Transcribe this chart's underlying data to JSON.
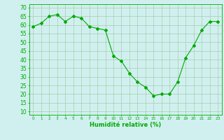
{
  "x": [
    0,
    1,
    2,
    3,
    4,
    5,
    6,
    7,
    8,
    9,
    10,
    11,
    12,
    13,
    14,
    15,
    16,
    17,
    18,
    19,
    20,
    21,
    22,
    23
  ],
  "y": [
    59,
    61,
    65,
    66,
    62,
    65,
    64,
    59,
    58,
    57,
    42,
    39,
    32,
    27,
    24,
    19,
    20,
    20,
    27,
    41,
    48,
    57,
    62,
    62
  ],
  "line_color": "#00aa00",
  "marker": "D",
  "marker_size": 2.0,
  "bg_color": "#d0f0f0",
  "grid_color": "#aaccaa",
  "axis_color": "#00aa00",
  "tick_color": "#00aa00",
  "xlabel": "Humidité relative (%)",
  "xlabel_fontsize": 6.0,
  "ylabel_ticks": [
    10,
    15,
    20,
    25,
    30,
    35,
    40,
    45,
    50,
    55,
    60,
    65,
    70
  ],
  "ylim": [
    8,
    72
  ],
  "xlim": [
    -0.5,
    23.5
  ],
  "ytick_fontsize": 5.5,
  "xtick_fontsize": 4.2
}
